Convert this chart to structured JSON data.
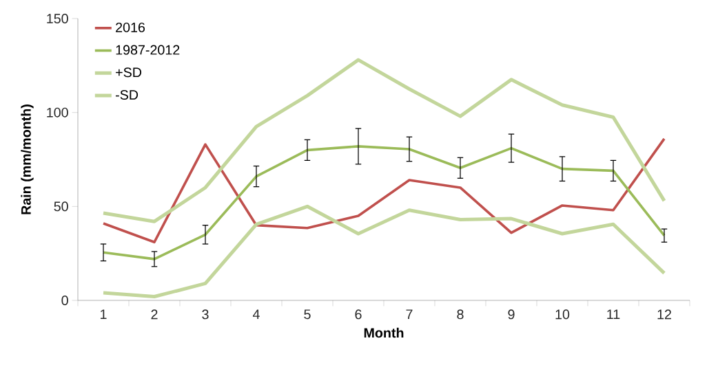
{
  "chart_data": {
    "type": "line",
    "xlabel": "Month",
    "ylabel": "Rain (mm/month)",
    "categories": [
      "1",
      "2",
      "3",
      "4",
      "5",
      "6",
      "7",
      "8",
      "9",
      "10",
      "11",
      "12"
    ],
    "ylim": [
      0,
      150
    ],
    "yticks": [
      0,
      50,
      100,
      150
    ],
    "legend": "top left",
    "series": [
      {
        "name": "2016",
        "color": "#c0504d",
        "values": [
          41,
          31,
          83,
          40,
          38.5,
          45,
          64,
          60,
          36,
          50.5,
          48,
          86
        ]
      },
      {
        "name": "1987-2012",
        "color": "#9bbb59",
        "values": [
          25.5,
          22,
          35,
          66,
          80,
          82,
          80.5,
          70.5,
          81,
          70,
          69,
          34.5
        ],
        "errors": [
          4.5,
          4,
          5,
          5.5,
          5.5,
          9.5,
          6.5,
          5.5,
          7.5,
          6.5,
          5.5,
          3.5
        ]
      },
      {
        "name": "+SD",
        "color": "#c3d69b",
        "values": [
          46.5,
          42,
          60,
          92.5,
          109,
          128,
          112.5,
          98,
          117.5,
          104,
          97.5,
          53
        ]
      },
      {
        "name": "-SD",
        "color": "#c3d69b",
        "values": [
          4,
          2,
          9,
          40.5,
          50,
          35.5,
          48,
          43,
          43.5,
          35.5,
          40.5,
          14.5
        ]
      }
    ]
  }
}
